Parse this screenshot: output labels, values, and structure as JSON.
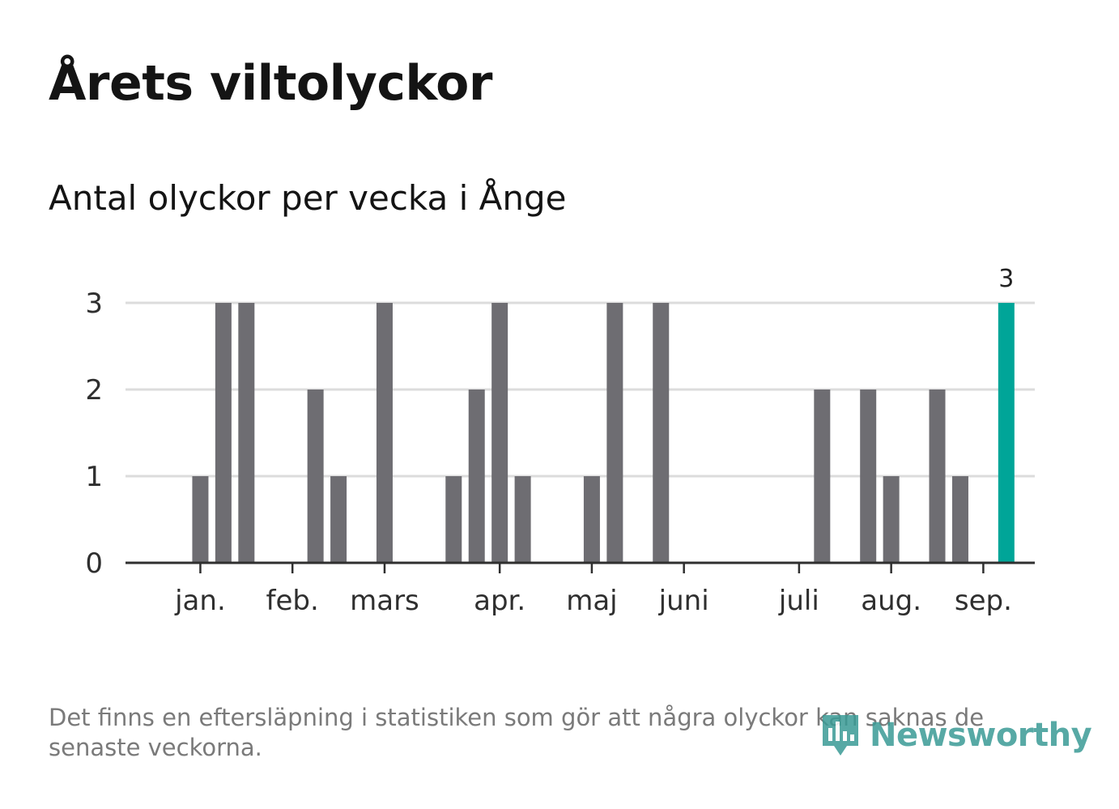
{
  "title": "Årets viltolyckor",
  "subtitle": "Antal olyckor per vecka i Ånge",
  "footnote": "Det finns en eftersläpning i statistiken som gör att några olyckor kan saknas de senaste veckorna.",
  "logo": {
    "text": "Newsworthy",
    "icon": "newsworthy-bar-chart-logo-icon",
    "color": "#3a9b96"
  },
  "chart_data": {
    "type": "bar",
    "xlabel": "",
    "ylabel": "",
    "ylim": [
      0,
      3
    ],
    "yticks": [
      0,
      1,
      2,
      3
    ],
    "grid": true,
    "colors": {
      "default": "#6e6d72",
      "highlight": "#00a598"
    },
    "month_ticks": [
      {
        "label": "jan.",
        "week": 2
      },
      {
        "label": "feb.",
        "week": 6
      },
      {
        "label": "mars",
        "week": 10
      },
      {
        "label": "apr.",
        "week": 15
      },
      {
        "label": "maj",
        "week": 19
      },
      {
        "label": "juni",
        "week": 23
      },
      {
        "label": "juli",
        "week": 28
      },
      {
        "label": "aug.",
        "week": 32
      },
      {
        "label": "sep.",
        "week": 36
      }
    ],
    "series": [
      {
        "x": [
          1,
          2,
          3,
          4,
          5,
          6,
          7,
          8,
          9,
          10,
          11,
          12,
          13,
          14,
          15,
          16,
          17,
          18,
          19,
          20,
          21,
          22,
          23,
          24,
          25,
          26,
          27,
          28,
          29,
          30,
          31,
          32,
          33,
          34,
          35,
          36,
          37
        ],
        "values": [
          0,
          1,
          3,
          3,
          0,
          0,
          2,
          1,
          0,
          3,
          0,
          0,
          1,
          2,
          3,
          1,
          0,
          0,
          1,
          3,
          0,
          3,
          0,
          0,
          0,
          0,
          0,
          0,
          2,
          0,
          2,
          1,
          0,
          2,
          1,
          0,
          3
        ]
      }
    ],
    "highlight_index": 36,
    "data_labels": [
      {
        "index": 36,
        "text": "3"
      }
    ]
  }
}
